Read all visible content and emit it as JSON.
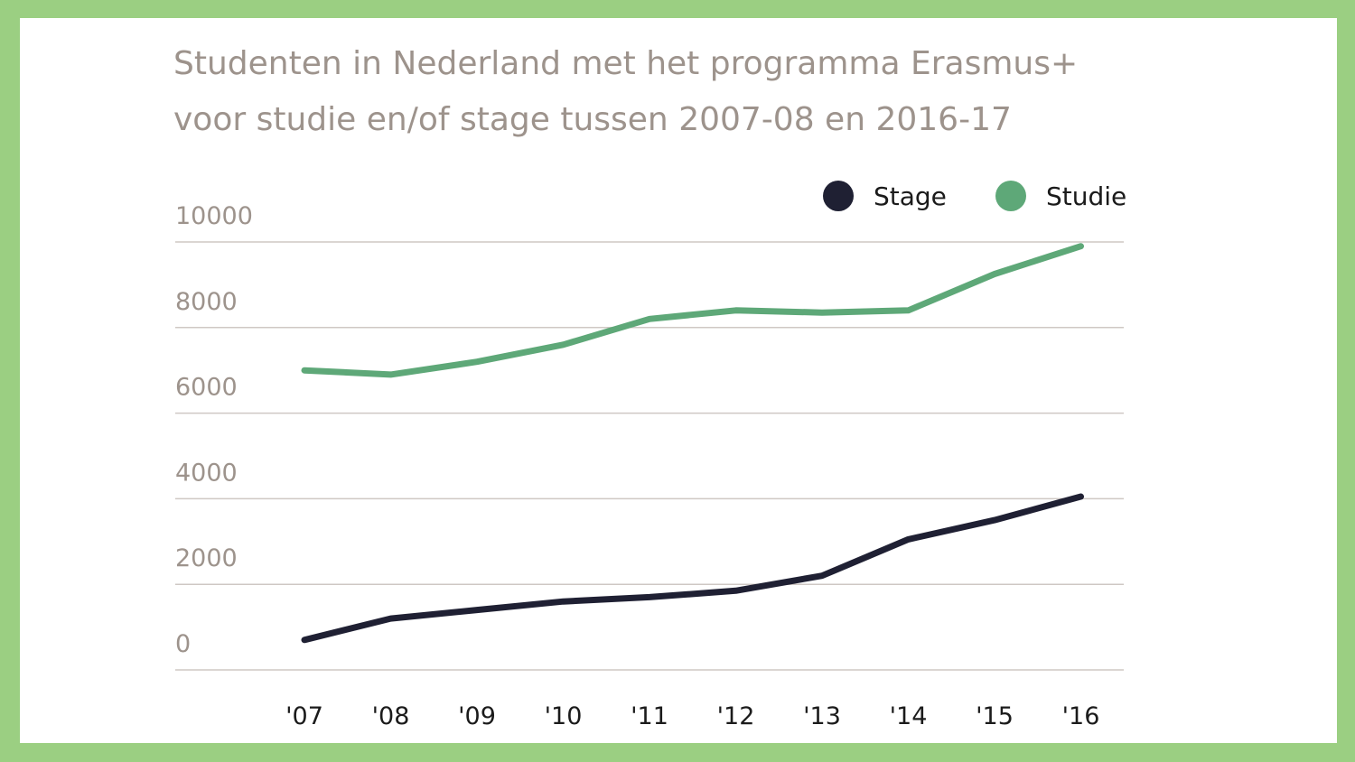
{
  "colors": {
    "frame": "#9bcf82",
    "stage": "#1f2033",
    "studie": "#5ea878",
    "gridline": "#cfc8c4",
    "tick_text": "#9d938c",
    "title_text": "#9d938c"
  },
  "chart_data": {
    "type": "line",
    "title_lines": [
      "Studenten in Nederland met het programma Erasmus+",
      "voor studie en/of stage tussen 2007-08 en 2016-17"
    ],
    "xlabel": "",
    "ylabel": "",
    "categories": [
      "'07",
      "'08",
      "'09",
      "'10",
      "'11",
      "'12",
      "'13",
      "'14",
      "'15",
      "'16"
    ],
    "ylim": [
      0,
      10000
    ],
    "yticks": [
      "0",
      "2000",
      "4000",
      "6000",
      "8000",
      "10000"
    ],
    "grid": true,
    "legend_position": "top-right",
    "series": [
      {
        "name": "Stage",
        "color": "#1f2033",
        "values": [
          700,
          1200,
          1400,
          1600,
          1700,
          1850,
          2200,
          3050,
          3500,
          4050
        ]
      },
      {
        "name": "Studie",
        "color": "#5ea878",
        "values": [
          7000,
          6900,
          7200,
          7600,
          8200,
          8400,
          8350,
          8400,
          9250,
          9900
        ]
      }
    ]
  }
}
